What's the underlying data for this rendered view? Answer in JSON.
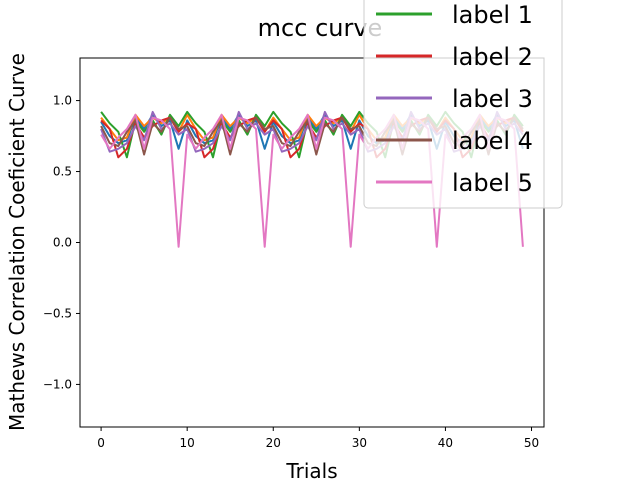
{
  "chart_data": {
    "type": "line",
    "title": "mcc curve",
    "xlabel": "Trials",
    "ylabel": "Mathews Correlation Coeficient Curve",
    "xlim": [
      -2.45,
      51.45
    ],
    "ylim": [
      -1.3,
      1.3
    ],
    "xticks": [
      0,
      10,
      20,
      30,
      40,
      50
    ],
    "yticks": [
      -1.0,
      -0.5,
      0.0,
      0.5,
      1.0
    ],
    "ytick_labels": [
      "−1.0",
      "−0.5",
      "0.0",
      "0.5",
      "1.0"
    ],
    "grid": false,
    "legend_position": "top-right",
    "x": [
      0,
      1,
      2,
      3,
      4,
      5,
      6,
      7,
      8,
      9,
      10,
      11,
      12,
      13,
      14,
      15,
      16,
      17,
      18,
      19,
      20,
      21,
      22,
      23,
      24,
      25,
      26,
      27,
      28,
      29,
      30,
      31,
      32,
      33,
      34,
      35,
      36,
      37,
      38,
      39,
      40,
      41,
      42,
      43,
      44,
      45,
      46,
      47,
      48,
      49
    ],
    "series": [
      {
        "name": "",
        "color": "#1f77b4",
        "values": [
          0.85,
          0.75,
          0.7,
          0.72,
          0.88,
          0.8,
          0.9,
          0.82,
          0.86,
          0.66,
          0.86,
          0.75,
          0.7,
          0.72,
          0.88,
          0.8,
          0.9,
          0.82,
          0.86,
          0.66,
          0.85,
          0.75,
          0.7,
          0.72,
          0.88,
          0.8,
          0.9,
          0.82,
          0.86,
          0.66,
          0.86,
          0.75,
          0.7,
          0.72,
          0.88,
          0.8,
          0.9,
          0.82,
          0.86,
          0.66,
          0.85,
          0.75,
          0.7,
          0.72,
          0.88,
          0.8,
          0.9,
          0.82,
          0.86,
          0.66
        ]
      },
      {
        "name": "",
        "color": "#ff7f0e",
        "values": [
          0.88,
          0.8,
          0.72,
          0.74,
          0.9,
          0.82,
          0.88,
          0.84,
          0.88,
          0.78,
          0.9,
          0.8,
          0.72,
          0.74,
          0.9,
          0.82,
          0.88,
          0.84,
          0.88,
          0.78,
          0.88,
          0.8,
          0.72,
          0.74,
          0.9,
          0.82,
          0.88,
          0.84,
          0.88,
          0.78,
          0.9,
          0.8,
          0.72,
          0.74,
          0.9,
          0.82,
          0.88,
          0.84,
          0.88,
          0.78,
          0.88,
          0.8,
          0.72,
          0.74,
          0.9,
          0.82,
          0.88,
          0.84,
          0.88,
          0.78
        ]
      },
      {
        "name": "label 1",
        "color": "#2ca02c",
        "values": [
          0.92,
          0.84,
          0.78,
          0.6,
          0.86,
          0.78,
          0.86,
          0.76,
          0.9,
          0.82,
          0.92,
          0.84,
          0.78,
          0.6,
          0.86,
          0.78,
          0.86,
          0.76,
          0.9,
          0.82,
          0.92,
          0.84,
          0.78,
          0.6,
          0.86,
          0.78,
          0.86,
          0.76,
          0.9,
          0.82,
          0.92,
          0.84,
          0.78,
          0.6,
          0.86,
          0.78,
          0.86,
          0.76,
          0.9,
          0.82,
          0.92,
          0.84,
          0.78,
          0.6,
          0.86,
          0.78,
          0.86,
          0.76,
          0.9,
          0.82
        ]
      },
      {
        "name": "label 2",
        "color": "#d62728",
        "values": [
          0.86,
          0.8,
          0.6,
          0.66,
          0.84,
          0.74,
          0.82,
          0.86,
          0.88,
          0.78,
          0.84,
          0.8,
          0.6,
          0.66,
          0.84,
          0.74,
          0.82,
          0.86,
          0.88,
          0.78,
          0.86,
          0.8,
          0.6,
          0.66,
          0.84,
          0.74,
          0.82,
          0.86,
          0.88,
          0.78,
          0.84,
          0.8,
          0.6,
          0.66,
          0.84,
          0.74,
          0.82,
          0.86,
          0.88,
          0.78,
          0.86,
          0.8,
          0.6,
          0.66,
          0.84,
          0.74,
          0.82,
          0.86,
          0.88,
          0.78
        ]
      },
      {
        "name": "label 3",
        "color": "#9467bd",
        "values": [
          0.8,
          0.64,
          0.66,
          0.7,
          0.82,
          0.72,
          0.92,
          0.8,
          0.84,
          0.76,
          0.8,
          0.64,
          0.66,
          0.7,
          0.82,
          0.72,
          0.92,
          0.8,
          0.84,
          0.76,
          0.8,
          0.64,
          0.66,
          0.7,
          0.82,
          0.72,
          0.92,
          0.8,
          0.84,
          0.76,
          0.8,
          0.64,
          0.66,
          0.7,
          0.82,
          0.72,
          0.92,
          0.8,
          0.84,
          0.76,
          0.8,
          0.64,
          0.66,
          0.7,
          0.82,
          0.72,
          0.92,
          0.8,
          0.84,
          0.76
        ]
      },
      {
        "name": "label 4",
        "color": "#8c564b",
        "values": [
          0.82,
          0.7,
          0.68,
          0.78,
          0.86,
          0.62,
          0.84,
          0.78,
          0.88,
          0.8,
          0.82,
          0.7,
          0.68,
          0.78,
          0.86,
          0.62,
          0.84,
          0.78,
          0.88,
          0.8,
          0.82,
          0.7,
          0.68,
          0.78,
          0.86,
          0.62,
          0.84,
          0.78,
          0.88,
          0.8,
          0.82,
          0.7,
          0.68,
          0.78,
          0.86,
          0.62,
          0.84,
          0.78,
          0.88,
          0.8,
          0.82,
          0.7,
          0.68,
          0.78,
          0.86,
          0.62,
          0.84,
          0.78,
          0.88,
          0.8
        ]
      },
      {
        "name": "label 5",
        "color": "#e377c2",
        "values": [
          0.76,
          0.66,
          0.74,
          0.8,
          0.9,
          0.66,
          0.88,
          0.86,
          0.8,
          -0.03,
          0.76,
          0.66,
          0.74,
          0.8,
          0.9,
          0.66,
          0.88,
          0.86,
          0.8,
          -0.03,
          0.76,
          0.66,
          0.74,
          0.8,
          0.9,
          0.66,
          0.88,
          0.86,
          0.8,
          -0.03,
          0.76,
          0.66,
          0.74,
          0.8,
          0.9,
          0.66,
          0.88,
          0.86,
          0.8,
          -0.03,
          0.76,
          0.66,
          0.74,
          0.8,
          0.9,
          0.66,
          0.88,
          0.86,
          0.8,
          -0.03
        ]
      }
    ]
  }
}
